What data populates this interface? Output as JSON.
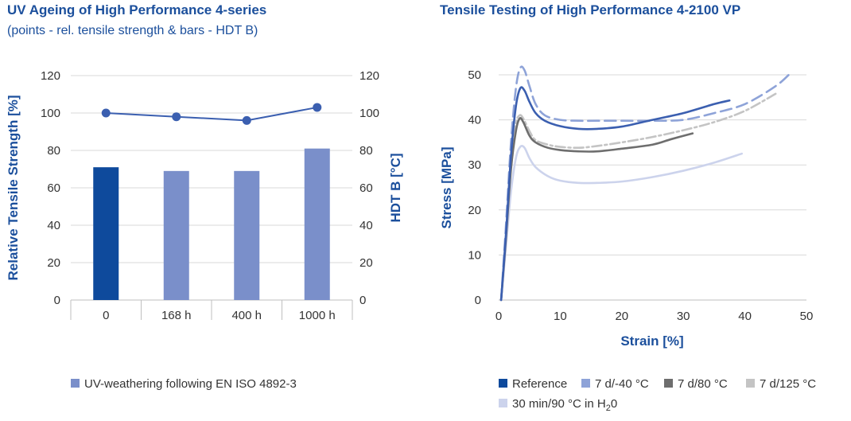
{
  "colors": {
    "title": "#1b4f9c",
    "reference": "#0e4a9c",
    "bar_light": "#7a8fca",
    "line_point": "#3b5fb0",
    "cold": "#8ea3d8",
    "hot80": "#6e6e6e",
    "hot125": "#c4c4c4",
    "water": "#ccd3ec",
    "grid": "#d9d9d9"
  },
  "chart_data": [
    {
      "type": "bar",
      "title": "UV Ageing of High Performance 4-series",
      "subtitle": "(points - rel. tensile strength & bars - HDT B)",
      "categories": [
        "0",
        "168 h",
        "400 h",
        "1000 h"
      ],
      "ylabel": "Relative Tensile Strength [%]",
      "y2label": "HDT B [°C]",
      "ylim": [
        0,
        120
      ],
      "yticks": [
        "0",
        "20",
        "40",
        "60",
        "80",
        "100",
        "120"
      ],
      "y2ticks": [
        "0",
        "20",
        "40",
        "60",
        "80",
        "100",
        "120"
      ],
      "series": [
        {
          "name": "UV-weathering following EN ISO 4892-3",
          "kind": "bar",
          "axis": "y2",
          "values": [
            71,
            69,
            69,
            81
          ]
        },
        {
          "kind": "line",
          "axis": "y",
          "values": [
            100,
            98,
            96,
            103
          ]
        }
      ],
      "legend": "bottom"
    },
    {
      "type": "line",
      "title": "Tensile Testing of High Performance 4-2100 VP",
      "xlabel": "Strain [%]",
      "ylabel": "Stress [MPa]",
      "xlim": [
        0,
        50
      ],
      "ylim": [
        0,
        50
      ],
      "xticks": [
        "0",
        "10",
        "20",
        "30",
        "40",
        "50"
      ],
      "yticks": [
        "0",
        "10",
        "20",
        "30",
        "40",
        "50"
      ],
      "legend": "bottom",
      "series": [
        {
          "name": "Reference",
          "dash": "solid",
          "x": [
            0.4,
            1.2,
            2.0,
            2.8,
            3.5,
            4.2,
            5.0,
            6.0,
            7.5,
            10,
            13,
            16,
            20,
            25,
            30,
            35,
            37.5
          ],
          "y": [
            0,
            15,
            32,
            43,
            47,
            46.5,
            44,
            41.5,
            39.8,
            38.6,
            38,
            38,
            38.5,
            40,
            41.5,
            43.5,
            44.3
          ]
        },
        {
          "name": "7 d/-40 °C",
          "dash": "dashed",
          "x": [
            0.4,
            1.2,
            2.0,
            2.8,
            3.5,
            4.2,
            5.0,
            6.0,
            7.5,
            10,
            13,
            16,
            20,
            25,
            30,
            35,
            40,
            45,
            47.5
          ],
          "y": [
            0,
            17,
            35,
            47,
            51.5,
            51,
            47.5,
            43.5,
            41,
            40,
            39.8,
            39.8,
            39.8,
            39.8,
            40,
            41.5,
            43.5,
            47.5,
            50.5
          ]
        },
        {
          "name": "7 d/80 °C",
          "dash": "solid",
          "x": [
            0.4,
            1.2,
            2.0,
            2.8,
            3.4,
            4.0,
            5.0,
            6.0,
            8,
            10,
            13,
            16,
            20,
            25,
            28,
            31.5
          ],
          "y": [
            0,
            14,
            29,
            37.5,
            40.3,
            39.5,
            36.5,
            35,
            33.8,
            33.3,
            33,
            33,
            33.6,
            34.5,
            35.7,
            37
          ]
        },
        {
          "name": "7 d/125 °C",
          "dash": "dashdot",
          "x": [
            0.4,
            1.2,
            2.0,
            2.8,
            3.4,
            4.0,
            5.0,
            6.0,
            8,
            10,
            13,
            16,
            20,
            25,
            30,
            35,
            40,
            45
          ],
          "y": [
            0,
            14,
            30,
            39,
            41,
            40.3,
            37.5,
            35.5,
            34.5,
            34,
            33.8,
            34.2,
            35,
            36.2,
            37.7,
            39.5,
            42,
            45.8
          ]
        },
        {
          "name": "30 min/90 °C in H20",
          "dash": "solid",
          "x": [
            0.4,
            1.2,
            2.0,
            2.8,
            3.5,
            4.2,
            5.0,
            6.0,
            8,
            10,
            13,
            16,
            20,
            25,
            30,
            35,
            39.5
          ],
          "y": [
            0,
            12,
            24,
            31.5,
            34,
            33.8,
            31.5,
            29.5,
            27.5,
            26.5,
            26,
            26,
            26.3,
            27.3,
            28.7,
            30.5,
            32.5
          ]
        }
      ]
    }
  ],
  "legend_labels": {
    "reference": "Reference",
    "cold": "7 d/-40 °C",
    "hot80": "7 d/80 °C",
    "hot125": "7 d/125 °C",
    "water_prefix": "30 min/90 °C in H",
    "water_sub": "2",
    "water_suffix": "0"
  }
}
